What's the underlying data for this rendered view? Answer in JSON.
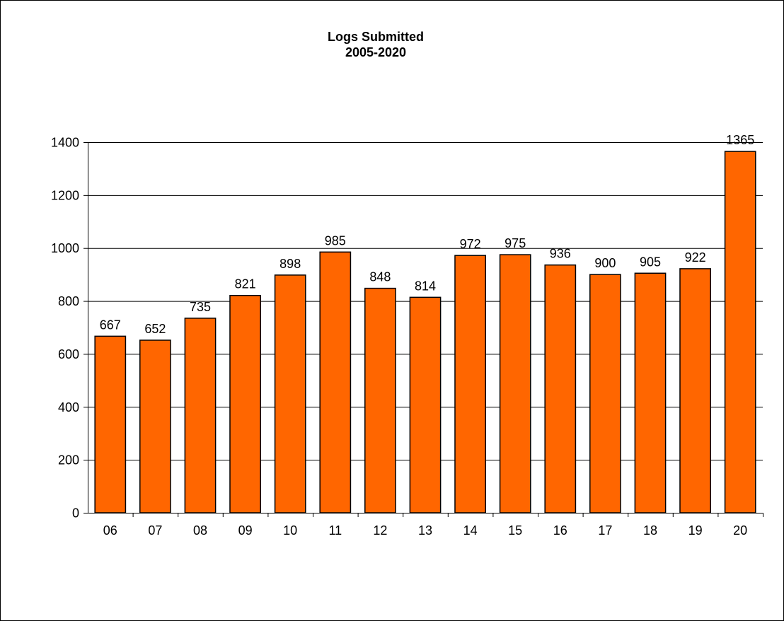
{
  "colors": {
    "bar_fill": "#ff6600",
    "bar_stroke": "#000000",
    "grid": "#000000",
    "background": "#ffffff"
  },
  "chart_data": {
    "type": "bar",
    "title": "Logs Submitted",
    "subtitle": "2005-2020",
    "xlabel": "",
    "ylabel": "",
    "categories": [
      "06",
      "07",
      "08",
      "09",
      "10",
      "11",
      "12",
      "13",
      "14",
      "15",
      "16",
      "17",
      "18",
      "19",
      "20"
    ],
    "values": [
      667,
      652,
      735,
      821,
      898,
      985,
      848,
      814,
      972,
      975,
      936,
      900,
      905,
      922,
      1365
    ],
    "data_labels": [
      "667",
      "652",
      "735",
      "821",
      "898",
      "985",
      "848",
      "814",
      "972",
      "975",
      "936",
      "900",
      "905",
      "922",
      "1365"
    ],
    "ylim": [
      0,
      1400
    ],
    "yticks": [
      0,
      200,
      400,
      600,
      800,
      1000,
      1200,
      1400
    ],
    "ytick_labels": [
      "0",
      "200",
      "400",
      "600",
      "800",
      "1000",
      "1200",
      "1400"
    ],
    "grid": true,
    "legend": "none"
  }
}
